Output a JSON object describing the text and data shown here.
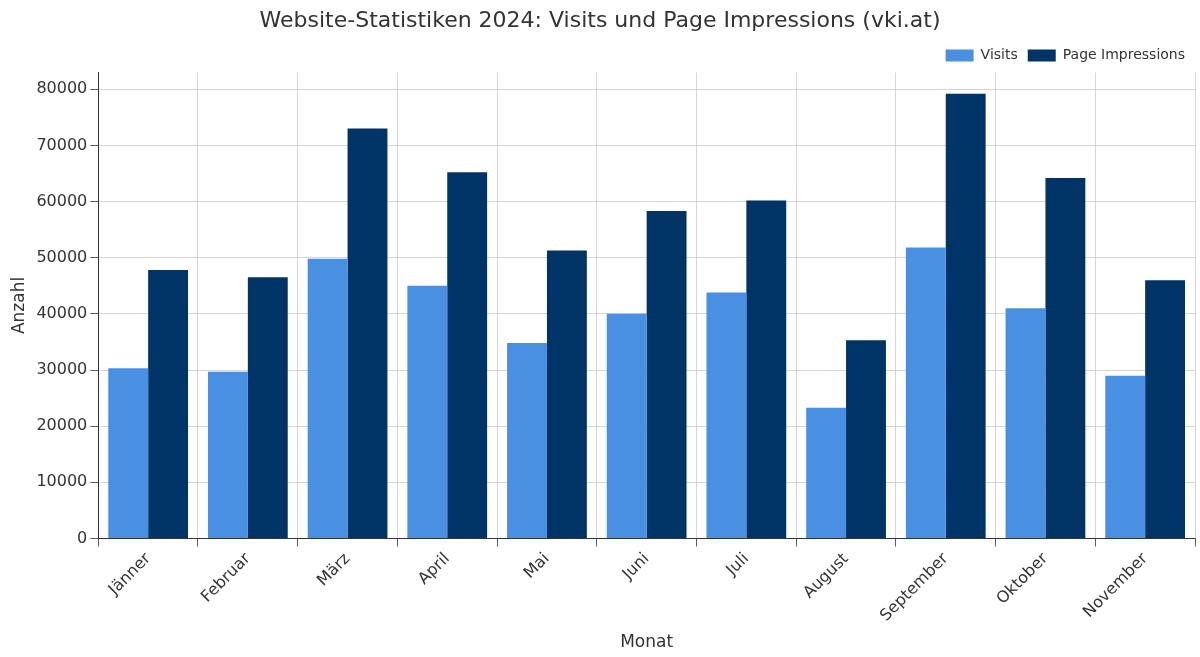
{
  "chart_data": {
    "type": "bar",
    "title": "Website-Statistiken 2024: Visits und Page Impressions (vki.at)",
    "xlabel": "Monat",
    "ylabel": "Anzahl",
    "categories": [
      "Jänner",
      "Februar",
      "März",
      "April",
      "Mai",
      "Juni",
      "Juli",
      "August",
      "September",
      "Oktober",
      "November"
    ],
    "series": [
      {
        "name": "Visits",
        "color": "#4a90e2",
        "values": [
          30300,
          29700,
          49800,
          45000,
          34800,
          40000,
          43800,
          23300,
          51800,
          41000,
          29000
        ]
      },
      {
        "name": "Page Impressions",
        "color": "#003366",
        "values": [
          47800,
          46500,
          73000,
          65200,
          51300,
          58300,
          60200,
          35300,
          79200,
          64200,
          46000
        ]
      }
    ],
    "ylim": [
      0,
      83000
    ],
    "yticks": [
      0,
      10000,
      20000,
      30000,
      40000,
      50000,
      60000,
      70000,
      80000
    ],
    "grid": true,
    "legend": "top right"
  }
}
